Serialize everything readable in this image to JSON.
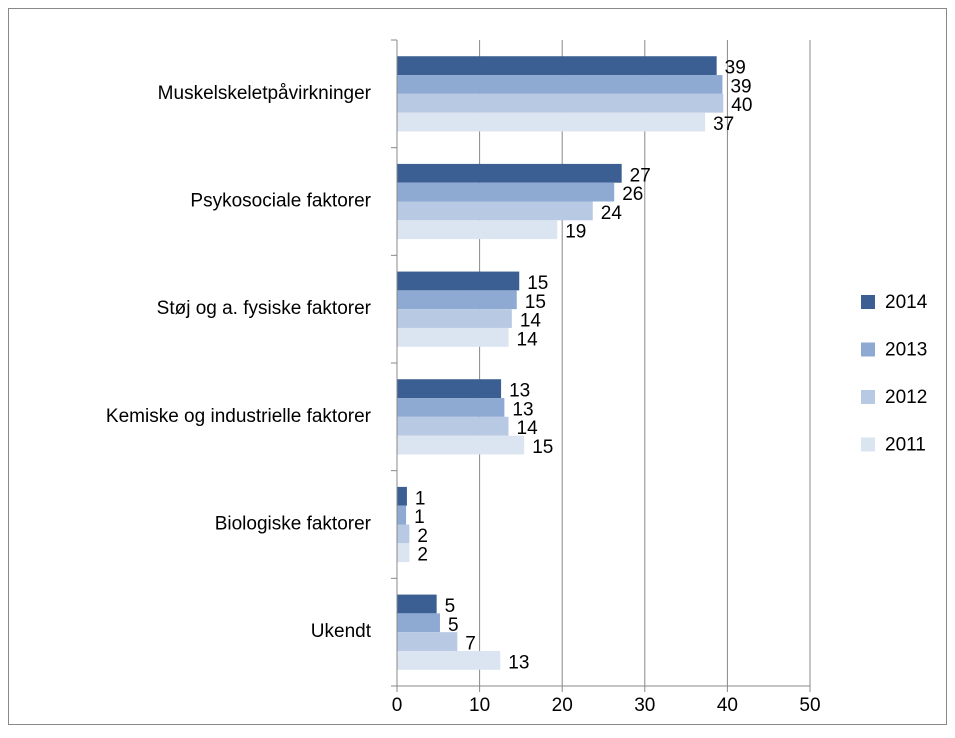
{
  "chart_data": {
    "type": "barh",
    "categories": [
      "Muskelskeletpåvirkninger",
      "Psykosociale faktorer",
      "Støj og a. fysiske faktorer",
      "Kemiske og industrielle faktorer",
      "Biologiske faktorer",
      "Ukendt"
    ],
    "series": [
      {
        "name": "2014",
        "color": "#3b5f92",
        "values": [
          38.7,
          27.2,
          14.8,
          12.6,
          1.2,
          4.8
        ],
        "value_labels": [
          "39",
          "27",
          "15",
          "13",
          "1",
          "5"
        ]
      },
      {
        "name": "2013",
        "color": "#8eaad3",
        "values": [
          39.4,
          26.3,
          14.5,
          13.0,
          1.1,
          5.2
        ],
        "value_labels": [
          "39",
          "26",
          "15",
          "13",
          "1",
          "5"
        ]
      },
      {
        "name": "2012",
        "color": "#b8c9e3",
        "values": [
          39.5,
          23.7,
          13.9,
          13.5,
          1.5,
          7.3
        ],
        "value_labels": [
          "40",
          "24",
          "14",
          "14",
          "2",
          "7"
        ]
      },
      {
        "name": "2011",
        "color": "#dbe4f1",
        "values": [
          37.3,
          19.4,
          13.5,
          15.4,
          1.5,
          12.5
        ],
        "value_labels": [
          "37",
          "19",
          "14",
          "15",
          "2",
          "13"
        ]
      }
    ],
    "xlim": [
      0,
      50
    ],
    "xticks": [
      0,
      10,
      20,
      30,
      40,
      50
    ],
    "grid": true,
    "legend": "right"
  }
}
